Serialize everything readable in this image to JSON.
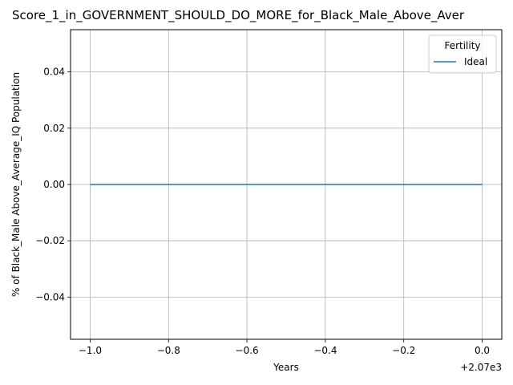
{
  "chart_data": {
    "type": "line",
    "title": "Score_1_in_GOVERNMENT_SHOULD_DO_MORE_for_Black_Male_Above_Aver",
    "xlabel": "Years",
    "ylabel": "% of Black_Male Above_Average_IQ Population",
    "x_offset_label": "+2.07e3",
    "x_tick_labels": [
      "−1.0",
      "−0.8",
      "−0.6",
      "−0.4",
      "−0.2",
      "0.0"
    ],
    "y_tick_labels": [
      "−0.04",
      "−0.02",
      "0.00",
      "0.02",
      "0.04"
    ],
    "xlim": [
      2068.95,
      2070.05
    ],
    "ylim": [
      -0.055,
      0.055
    ],
    "x_ticks": [
      2069.0,
      2069.2,
      2069.4,
      2069.6,
      2069.8,
      2070.0
    ],
    "y_ticks": [
      -0.04,
      -0.02,
      0.0,
      0.02,
      0.04
    ],
    "grid": true,
    "legend": {
      "title": "Fertility",
      "position": "top-right"
    },
    "series": [
      {
        "name": "Ideal",
        "color": "#1f77b4",
        "x": [
          2069,
          2070
        ],
        "y": [
          0,
          0
        ]
      }
    ]
  }
}
